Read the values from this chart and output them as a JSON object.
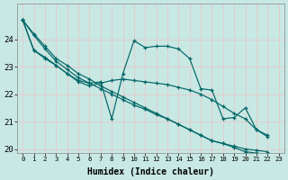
{
  "xlabel": "Humidex (Indice chaleur)",
  "background_color": "#c8e8e4",
  "grid_color": "#d8f0ec",
  "line_color": "#006666",
  "xlim": [
    -0.5,
    23.5
  ],
  "ylim": [
    19.85,
    25.3
  ],
  "yticks": [
    20,
    21,
    22,
    23,
    24
  ],
  "xticks": [
    0,
    1,
    2,
    3,
    4,
    5,
    6,
    7,
    8,
    9,
    10,
    11,
    12,
    13,
    14,
    15,
    16,
    17,
    18,
    19,
    20,
    21,
    22,
    23
  ],
  "lines": [
    {
      "x": [
        0,
        1,
        2,
        3,
        4,
        5,
        6,
        7,
        8,
        9,
        10,
        11,
        12,
        13,
        14,
        15,
        16,
        17,
        18,
        19,
        20,
        21,
        22
      ],
      "y": [
        24.7,
        23.6,
        23.35,
        23.05,
        22.75,
        22.5,
        22.4,
        22.45,
        21.1,
        22.75,
        23.95,
        23.7,
        23.75,
        23.75,
        23.65,
        23.3,
        22.2,
        22.15,
        21.1,
        21.15,
        21.5,
        20.7,
        20.5
      ]
    },
    {
      "x": [
        0,
        1,
        2,
        3,
        4,
        5,
        6,
        7,
        8,
        9,
        10,
        11,
        12,
        13,
        14,
        15,
        16,
        17,
        18,
        19,
        20,
        21,
        22
      ],
      "y": [
        24.7,
        24.2,
        23.75,
        23.3,
        23.05,
        22.75,
        22.55,
        22.3,
        22.1,
        21.9,
        21.7,
        21.5,
        21.3,
        21.1,
        20.9,
        20.7,
        20.5,
        20.3,
        20.2,
        20.1,
        20.0,
        19.95,
        19.9
      ]
    },
    {
      "x": [
        0,
        1,
        2,
        3,
        4,
        5,
        6,
        7,
        8,
        9,
        10,
        11,
        12,
        13,
        14,
        15,
        16,
        17,
        18,
        19,
        20,
        21,
        22
      ],
      "y": [
        24.7,
        24.15,
        23.65,
        23.2,
        22.9,
        22.6,
        22.4,
        22.2,
        22.0,
        21.8,
        21.6,
        21.45,
        21.25,
        21.1,
        20.9,
        20.7,
        20.5,
        20.3,
        20.2,
        20.05,
        19.9,
        19.85,
        19.8
      ]
    },
    {
      "x": [
        0,
        1,
        2,
        3,
        4,
        5,
        6,
        7,
        8,
        9,
        10,
        11,
        12,
        13,
        14,
        15,
        16,
        17,
        18,
        19,
        20,
        21,
        22
      ],
      "y": [
        24.7,
        23.6,
        23.3,
        23.05,
        22.75,
        22.45,
        22.3,
        22.4,
        22.5,
        22.55,
        22.5,
        22.45,
        22.4,
        22.35,
        22.25,
        22.15,
        22.0,
        21.8,
        21.55,
        21.3,
        21.1,
        20.7,
        20.45
      ]
    }
  ]
}
